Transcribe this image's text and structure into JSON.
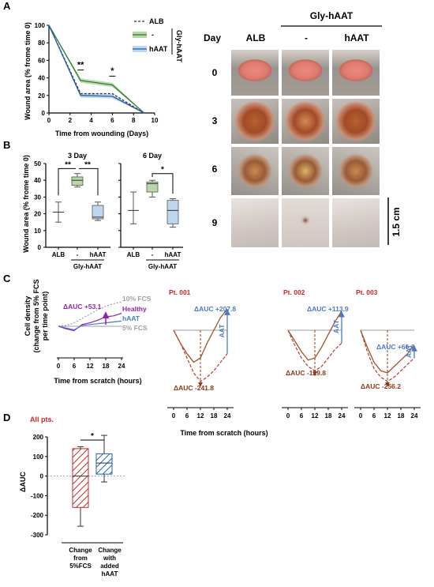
{
  "panels": {
    "A": "A",
    "B": "B",
    "C": "C",
    "D": "D"
  },
  "colors": {
    "alb": "#333333",
    "minus": "#2e7d32",
    "minus_fill": "#b7d7a8",
    "haat": "#1f5fa8",
    "haat_fill": "#bcd7ef",
    "patient": "#c0392b",
    "healthy": "#8e24aa",
    "fcs10": "#9e9e9e",
    "d_red": "#c62828",
    "d_blue": "#1f5fa8"
  },
  "chart_data": [
    {
      "id": "A",
      "type": "line",
      "xlabel": "Time from wounding (Days)",
      "ylabel": "Wound area (% frome time 0)",
      "xlim": [
        0,
        10
      ],
      "ylim": [
        0,
        100
      ],
      "xticks": [
        "0",
        "2",
        "4",
        "6",
        "8",
        "10"
      ],
      "yticks": [
        "0",
        "20",
        "40",
        "60",
        "80",
        "100"
      ],
      "x": [
        0,
        3,
        6,
        9
      ],
      "series": [
        {
          "name": "ALB",
          "values": [
            100,
            22,
            22,
            0
          ],
          "style": "dashed"
        },
        {
          "name": "-",
          "values": [
            100,
            37,
            32,
            0
          ],
          "style": "band"
        },
        {
          "name": "hAAT",
          "values": [
            100,
            20,
            19,
            0
          ],
          "style": "band"
        }
      ],
      "legend_group": "Gly-hAAT",
      "annotations": [
        {
          "text": "**",
          "x": 3
        },
        {
          "text": "*",
          "x": 6
        }
      ]
    },
    {
      "id": "B-3day",
      "type": "box",
      "title": "3 Day",
      "ylabel": "Wound area (% frome time 0)",
      "ylim": [
        0,
        50
      ],
      "yticks": [
        "0",
        "10",
        "20",
        "30",
        "40",
        "50"
      ],
      "categories": [
        "ALB",
        "-",
        "hAAT"
      ],
      "group_label": "Gly-hAAT",
      "boxes": [
        {
          "min": 15,
          "q1": 20,
          "median": 21,
          "q3": 22,
          "max": 27
        },
        {
          "min": 36,
          "q1": 37,
          "median": 40,
          "q3": 42,
          "max": 44
        },
        {
          "min": 16,
          "q1": 17,
          "median": 18,
          "q3": 25,
          "max": 27
        }
      ],
      "annotations": [
        {
          "text": "**",
          "between": [
            "ALB",
            "-"
          ]
        },
        {
          "text": "**",
          "between": [
            "-",
            "hAAT"
          ]
        }
      ]
    },
    {
      "id": "B-6day",
      "type": "box",
      "title": "6 Day",
      "ylim": [
        0,
        50
      ],
      "categories": [
        "ALB",
        "-",
        "hAAT"
      ],
      "group_label": "Gly-hAAT",
      "boxes": [
        {
          "min": 14,
          "q1": 21,
          "median": 22,
          "q3": 23,
          "max": 33
        },
        {
          "min": 30,
          "q1": 33,
          "median": 38,
          "q3": 39,
          "max": 40
        },
        {
          "min": 12,
          "q1": 14,
          "median": 22,
          "q3": 28,
          "max": 29
        }
      ],
      "annotations": [
        {
          "text": "*",
          "between": [
            "-",
            "hAAT"
          ]
        }
      ]
    },
    {
      "id": "C-reference",
      "type": "line",
      "xlabel": "Time from scratch (hours)",
      "ylabel": "Cell density (change from 5% FCS per time point)",
      "xticks": [
        "0",
        "6",
        "12",
        "18",
        "24"
      ],
      "x": [
        0,
        3,
        6,
        9,
        12,
        15,
        18,
        21,
        24
      ],
      "series": [
        {
          "name": "10% FCS",
          "values": [
            0,
            2,
            8,
            18,
            28,
            38,
            46,
            52,
            56
          ]
        },
        {
          "name": "Healthy",
          "values": [
            0,
            -6,
            -10,
            4,
            8,
            14,
            22,
            24,
            30
          ]
        },
        {
          "name": "hAAT",
          "values": [
            0,
            -4,
            -8,
            2,
            4,
            6,
            8,
            10,
            12
          ]
        },
        {
          "name": "5% FCS",
          "values": [
            0,
            0,
            0,
            0,
            0,
            0,
            0,
            0,
            0
          ]
        }
      ],
      "annotation": "ΔAUC +53.1"
    },
    {
      "id": "C-pt001",
      "type": "line",
      "title": "Pt. 001",
      "xticks": [
        "0",
        "6",
        "12",
        "18",
        "24"
      ],
      "x": [
        0,
        3,
        6,
        9,
        12,
        15,
        18,
        21,
        24
      ],
      "series": [
        {
          "name": "patient",
          "values": [
            0,
            -12,
            -26,
            -40,
            -48,
            -44,
            -38,
            -30,
            -22
          ],
          "style": "dashed"
        },
        {
          "name": "patient + hAAT",
          "values": [
            0,
            -12,
            -22,
            -30,
            -26,
            -12,
            0,
            12,
            20
          ],
          "style": "solid"
        }
      ],
      "annotations": [
        "ΔAUC +207.8",
        "ΔAUC -241.8",
        "AAT"
      ]
    },
    {
      "id": "C-pt002",
      "type": "line",
      "title": "Pt. 002",
      "xticks": [
        "0",
        "6",
        "12",
        "18",
        "24"
      ],
      "x": [
        0,
        3,
        6,
        9,
        12,
        15,
        18,
        21,
        24
      ],
      "series": [
        {
          "name": "patient",
          "values": [
            0,
            -14,
            -26,
            -34,
            -38,
            -34,
            -26,
            -18,
            -12
          ],
          "style": "dashed"
        },
        {
          "name": "patient + hAAT",
          "values": [
            0,
            -10,
            -20,
            -28,
            -26,
            -16,
            -4,
            8,
            18
          ],
          "style": "solid"
        }
      ],
      "annotations": [
        "ΔAUC +113.9",
        "ΔAUC -129.8",
        "AAT"
      ]
    },
    {
      "id": "C-pt003",
      "type": "line",
      "title": "Pt. 003",
      "xticks": [
        "0",
        "6",
        "12",
        "18",
        "24"
      ],
      "x": [
        0,
        3,
        6,
        9,
        12,
        15,
        18,
        21,
        24
      ],
      "series": [
        {
          "name": "patient",
          "values": [
            0,
            -20,
            -36,
            -44,
            -48,
            -44,
            -38,
            -32,
            -26
          ],
          "style": "dashed"
        },
        {
          "name": "patient + hAAT",
          "values": [
            0,
            -16,
            -30,
            -38,
            -40,
            -34,
            -28,
            -22,
            -14
          ],
          "style": "solid"
        }
      ],
      "annotations": [
        "ΔAUC +66.6",
        "ΔAUC -256.2",
        "AAT"
      ]
    },
    {
      "id": "D",
      "type": "bar",
      "title": "All pts.",
      "ylabel": "ΔAUC",
      "ylim": [
        -300,
        200
      ],
      "yticks": [
        "200",
        "100",
        "0",
        "-100",
        "-200",
        "-300"
      ],
      "categories": [
        "Change from 5%FCS",
        "Change with added hAAT"
      ],
      "boxes": [
        {
          "min": -256.2,
          "q1": -160,
          "median": 0,
          "q3": 140,
          "max": 150
        },
        {
          "min": -30,
          "q1": 10,
          "median": 66.6,
          "q3": 113.9,
          "max": 207.8
        }
      ],
      "annotations": [
        {
          "text": "*"
        }
      ]
    }
  ],
  "panelA": {
    "legend": {
      "alb": "ALB",
      "minus": "-",
      "haat": "hAAT",
      "group": "Gly-hAAT"
    },
    "stars": [
      "**",
      "*"
    ],
    "xlabel": "Time from wounding (Days)",
    "ylabel": "Wound area (% frome time 0)"
  },
  "photos": {
    "header_group": "Gly-hAAT",
    "day_label": "Day",
    "columns": [
      "ALB",
      "-",
      "hAAT"
    ],
    "days": [
      "0",
      "3",
      "6",
      "9"
    ],
    "scale": "1.5 cm"
  },
  "panelB": {
    "ylabel": "Wound area (% frome time 0)",
    "left_title": "3 Day",
    "right_title": "6 Day",
    "cats": [
      "ALB",
      "-",
      "hAAT"
    ],
    "group": "Gly-hAAT"
  },
  "panelC": {
    "ylabel": [
      "Cell density",
      "(change from 5% FCS",
      "per time point)"
    ],
    "xlabel_small": "Time from scratch (hours)",
    "xlabel_main": "Time from scratch (hours)",
    "ref_labels": {
      "fcs10": "10% FCS",
      "healthy": "Healthy",
      "haat": "hAAT",
      "fcs5": "5% FCS",
      "dauc": "ΔAUC +53.1"
    },
    "patients": [
      {
        "title": "Pt. 001",
        "up": "ΔAUC +207.8",
        "down": "ΔAUC -241.8",
        "aat": "AAT"
      },
      {
        "title": "Pt. 002",
        "up": "ΔAUC +113.9",
        "down": "ΔAUC -129.8",
        "aat": "AAT"
      },
      {
        "title": "Pt. 003",
        "up": "ΔAUC +66.6",
        "down": "ΔAUC -256.2",
        "aat": "AAT"
      }
    ]
  },
  "panelD": {
    "title": "All pts.",
    "ylabel": "ΔAUC",
    "star": "*",
    "cat1": [
      "Change",
      "from",
      "5%FCS"
    ],
    "cat2": [
      "Change",
      "with",
      "added",
      "hAAT"
    ]
  }
}
